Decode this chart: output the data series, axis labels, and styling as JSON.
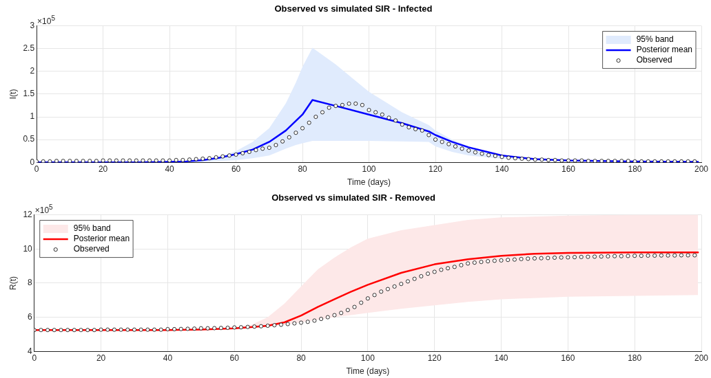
{
  "chart_data": [
    {
      "type": "line",
      "title": "Observed vs simulated SIR - Infected",
      "xlabel": "Time (days)",
      "ylabel": "I(t)",
      "annotations": [
        "×10$^{5}$"
      ],
      "xlim": [
        0,
        200
      ],
      "xticks": [
        0,
        20,
        40,
        60,
        80,
        100,
        120,
        140,
        160,
        180,
        200
      ],
      "ylim": [
        0,
        3
      ],
      "yticks": [
        0,
        0.5,
        1,
        1.5,
        2,
        2.5,
        3
      ],
      "grid": true,
      "legend": "top right",
      "series": [
        {
          "name": "95% band",
          "type": "line",
          "color": "#e0ebfd",
          "x": [
            40,
            45,
            50,
            55,
            60,
            65,
            70,
            75,
            78,
            80,
            83,
            90,
            95,
            100,
            110,
            118,
            120,
            125,
            130,
            140,
            150,
            160
          ],
          "values": [
            null,
            null,
            null,
            null,
            null,
            null,
            null,
            null,
            null,
            null,
            null,
            null,
            null,
            null,
            null,
            null,
            null,
            null,
            null,
            null,
            null,
            null
          ],
          "lower": [
            0,
            0,
            0.01,
            0.03,
            0.05,
            0.09,
            0.15,
            0.3,
            0.38,
            0.42,
            0.47,
            0.47,
            0.47,
            0.47,
            0.46,
            0.45,
            0.35,
            0.23,
            0.15,
            0.08,
            0.04,
            0.02
          ],
          "upper": [
            0.01,
            0.02,
            0.05,
            0.12,
            0.25,
            0.45,
            0.75,
            1.3,
            1.75,
            2.1,
            2.52,
            2.15,
            1.85,
            1.55,
            1.1,
            0.82,
            0.7,
            0.5,
            0.35,
            0.15,
            0.06,
            0.03
          ]
        },
        {
          "name": "Posterior mean",
          "type": "line",
          "color": "#0000ff",
          "x": [
            0,
            10,
            20,
            30,
            40,
            45,
            50,
            55,
            60,
            65,
            70,
            75,
            80,
            83,
            90,
            100,
            110,
            118,
            120,
            125,
            130,
            140,
            150,
            160,
            180,
            199
          ],
          "values": [
            0,
            0,
            0,
            0,
            0.01,
            0.02,
            0.05,
            0.1,
            0.18,
            0.28,
            0.45,
            0.7,
            1.05,
            1.37,
            1.24,
            1.05,
            0.86,
            0.68,
            0.6,
            0.45,
            0.33,
            0.15,
            0.07,
            0.04,
            0.02,
            0.01
          ]
        },
        {
          "name": "Observed",
          "type": "scatter",
          "marker": "circle",
          "color": "#000000",
          "x": [
            0,
            2,
            4,
            6,
            8,
            10,
            12,
            14,
            16,
            18,
            20,
            22,
            24,
            26,
            28,
            30,
            32,
            34,
            36,
            38,
            40,
            42,
            44,
            46,
            48,
            50,
            52,
            54,
            56,
            58,
            60,
            62,
            64,
            66,
            68,
            70,
            72,
            74,
            76,
            78,
            80,
            82,
            84,
            86,
            88,
            90,
            92,
            94,
            96,
            98,
            100,
            102,
            104,
            106,
            108,
            110,
            112,
            114,
            116,
            118,
            120,
            122,
            124,
            126,
            128,
            130,
            132,
            134,
            136,
            138,
            140,
            142,
            144,
            146,
            148,
            150,
            152,
            154,
            156,
            158,
            160,
            162,
            164,
            166,
            168,
            170,
            172,
            174,
            176,
            178,
            180,
            182,
            184,
            186,
            188,
            190,
            192,
            194,
            196,
            198
          ],
          "values": [
            0.02,
            0.02,
            0.02,
            0.03,
            0.03,
            0.03,
            0.03,
            0.03,
            0.03,
            0.03,
            0.04,
            0.04,
            0.04,
            0.04,
            0.04,
            0.04,
            0.04,
            0.04,
            0.04,
            0.04,
            0.04,
            0.05,
            0.05,
            0.06,
            0.07,
            0.08,
            0.09,
            0.11,
            0.13,
            0.15,
            0.17,
            0.2,
            0.23,
            0.27,
            0.3,
            0.32,
            0.38,
            0.46,
            0.55,
            0.65,
            0.75,
            0.87,
            1.0,
            1.1,
            1.2,
            1.24,
            1.26,
            1.29,
            1.29,
            1.26,
            1.15,
            1.1,
            1.05,
            0.98,
            0.92,
            0.83,
            0.77,
            0.73,
            0.7,
            0.6,
            0.5,
            0.45,
            0.4,
            0.35,
            0.3,
            0.26,
            0.22,
            0.19,
            0.16,
            0.14,
            0.12,
            0.1,
            0.09,
            0.08,
            0.07,
            0.06,
            0.06,
            0.05,
            0.05,
            0.04,
            0.04,
            0.04,
            0.04,
            0.03,
            0.03,
            0.03,
            0.03,
            0.03,
            0.03,
            0.03,
            0.02,
            0.02,
            0.02,
            0.02,
            0.02,
            0.02,
            0.02,
            0.02,
            0.02,
            0.02
          ]
        }
      ]
    },
    {
      "type": "line",
      "title": "Observed vs simulated SIR - Removed",
      "xlabel": "Time (days)",
      "ylabel": "R(t)",
      "annotations": [
        "×10$^{5}$"
      ],
      "xlim": [
        0,
        200
      ],
      "xticks": [
        0,
        20,
        40,
        60,
        80,
        100,
        120,
        140,
        160,
        180,
        200
      ],
      "ylim": [
        4,
        12
      ],
      "yticks": [
        4,
        6,
        8,
        10,
        12
      ],
      "grid": true,
      "legend": "top left",
      "series": [
        {
          "name": "95% band",
          "type": "line",
          "color": "#fde8e8",
          "x": [
            60,
            65,
            70,
            75,
            80,
            85,
            90,
            95,
            100,
            110,
            120,
            130,
            140,
            160,
            180,
            199
          ],
          "values": [
            null,
            null,
            null,
            null,
            null,
            null,
            null,
            null,
            null,
            null,
            null,
            null,
            null,
            null,
            null,
            null
          ],
          "lower": [
            5.35,
            5.4,
            5.45,
            5.55,
            5.7,
            5.85,
            6.0,
            6.12,
            6.25,
            6.5,
            6.7,
            6.9,
            7.05,
            7.2,
            7.25,
            7.3
          ],
          "upper": [
            5.4,
            5.55,
            6.0,
            6.8,
            7.8,
            8.8,
            9.5,
            10.1,
            10.6,
            11.1,
            11.4,
            11.7,
            11.85,
            11.95,
            12.0,
            12.0
          ]
        },
        {
          "name": "Posterior mean",
          "type": "line",
          "color": "#ff0000",
          "x": [
            0,
            20,
            40,
            50,
            60,
            65,
            70,
            75,
            80,
            85,
            90,
            95,
            100,
            110,
            120,
            130,
            140,
            150,
            160,
            180,
            199
          ],
          "values": [
            5.25,
            5.25,
            5.25,
            5.28,
            5.35,
            5.42,
            5.5,
            5.7,
            6.1,
            6.6,
            7.05,
            7.5,
            7.9,
            8.6,
            9.1,
            9.4,
            9.6,
            9.72,
            9.77,
            9.8,
            9.8
          ]
        },
        {
          "name": "Observed",
          "type": "scatter",
          "marker": "circle",
          "color": "#000000",
          "x": [
            0,
            2,
            4,
            6,
            8,
            10,
            12,
            14,
            16,
            18,
            20,
            22,
            24,
            26,
            28,
            30,
            32,
            34,
            36,
            38,
            40,
            42,
            44,
            46,
            48,
            50,
            52,
            54,
            56,
            58,
            60,
            62,
            64,
            66,
            68,
            70,
            72,
            74,
            76,
            78,
            80,
            82,
            84,
            86,
            88,
            90,
            92,
            94,
            96,
            98,
            100,
            102,
            104,
            106,
            108,
            110,
            112,
            114,
            116,
            118,
            120,
            122,
            124,
            126,
            128,
            130,
            132,
            134,
            136,
            138,
            140,
            142,
            144,
            146,
            148,
            150,
            152,
            154,
            156,
            158,
            160,
            162,
            164,
            166,
            168,
            170,
            172,
            174,
            176,
            178,
            180,
            182,
            184,
            186,
            188,
            190,
            192,
            194,
            196,
            198
          ],
          "values": [
            5.25,
            5.25,
            5.25,
            5.25,
            5.25,
            5.25,
            5.25,
            5.25,
            5.25,
            5.25,
            5.27,
            5.27,
            5.27,
            5.27,
            5.27,
            5.27,
            5.27,
            5.27,
            5.27,
            5.27,
            5.3,
            5.3,
            5.31,
            5.32,
            5.33,
            5.35,
            5.35,
            5.36,
            5.37,
            5.38,
            5.4,
            5.41,
            5.43,
            5.45,
            5.47,
            5.5,
            5.53,
            5.56,
            5.6,
            5.64,
            5.68,
            5.73,
            5.8,
            5.9,
            6.0,
            6.12,
            6.25,
            6.42,
            6.6,
            6.85,
            7.1,
            7.3,
            7.5,
            7.65,
            7.8,
            7.95,
            8.1,
            8.25,
            8.4,
            8.55,
            8.66,
            8.78,
            8.87,
            8.95,
            9.05,
            9.15,
            9.2,
            9.24,
            9.28,
            9.31,
            9.33,
            9.36,
            9.38,
            9.41,
            9.43,
            9.45,
            9.46,
            9.47,
            9.49,
            9.5,
            9.51,
            9.52,
            9.53,
            9.54,
            9.55,
            9.56,
            9.57,
            9.58,
            9.58,
            9.59,
            9.6,
            9.6,
            9.61,
            9.61,
            9.62,
            9.62,
            9.62,
            9.63,
            9.63,
            9.63
          ]
        }
      ]
    }
  ]
}
